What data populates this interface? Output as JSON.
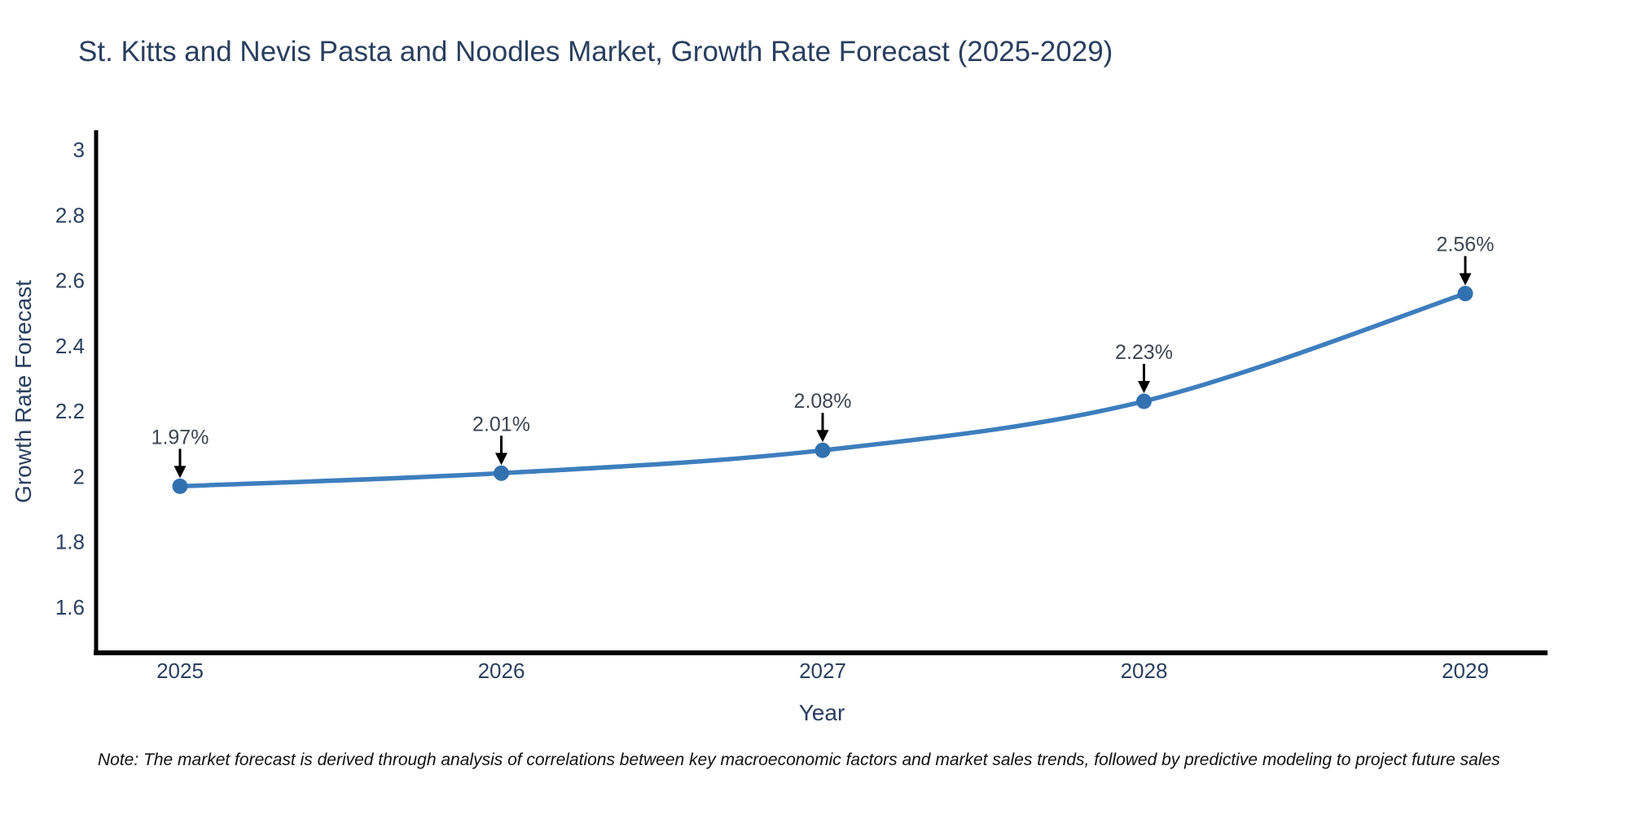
{
  "title": "St. Kitts and Nevis Pasta and Noodles Market, Growth Rate Forecast (2025-2029)",
  "note": "Note: The market forecast is derived through analysis of correlations between key macroeconomic factors and market sales trends, followed by predictive modeling to project future sales",
  "colors": {
    "text": "#2a3f5f",
    "annotation_text": "#3f4652",
    "note_text": "#111111",
    "background": "#ffffff"
  },
  "chart_data": {
    "type": "line",
    "title": "St. Kitts and Nevis Pasta and Noodles Market, Growth Rate Forecast (2025-2029)",
    "x": [
      2025,
      2026,
      2027,
      2028,
      2029
    ],
    "values": [
      1.97,
      2.01,
      2.08,
      2.23,
      2.56
    ],
    "point_labels": [
      "1.97%",
      "2.01%",
      "2.08%",
      "2.23%",
      "2.56%"
    ],
    "xlabel": "Year",
    "ylabel": "Growth Rate Forecast",
    "xtick_labels": [
      "2025",
      "2026",
      "2027",
      "2028",
      "2029"
    ],
    "yticks": [
      1.6,
      1.8,
      2,
      2.2,
      2.4,
      2.6,
      2.8,
      3
    ],
    "ytick_labels": [
      "1.6",
      "1.8",
      "2",
      "2.2",
      "2.4",
      "2.6",
      "2.8",
      "3"
    ],
    "ylim": [
      1.46,
      3.06
    ],
    "grid": false,
    "legend": "none",
    "line_shape": "spline",
    "line_color": "#3d7ebe",
    "marker_color": "#3271b0",
    "axis_color": "#000000",
    "annotation_arrow_color": "#000000"
  }
}
